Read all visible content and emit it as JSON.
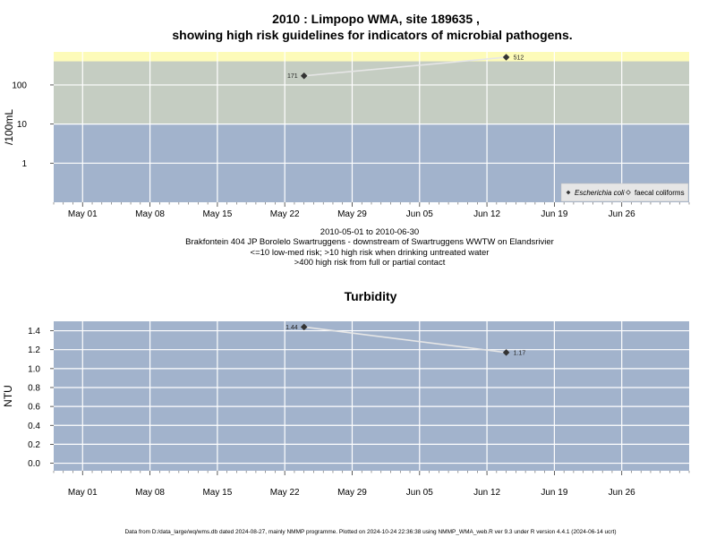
{
  "figure": {
    "title_line1": "2010 : Limpopo WMA, site 189635 ,",
    "title_line2": "showing high risk guidelines for indicators of microbial pathogens.",
    "caption_lines": [
      "2010-05-01 to 2010-06-30",
      "Brakfontein 404 JP Borolelo Swartruggens - downstream of Swartruggens WWTW on Elandsrivier",
      "<=10 low-med risk; >10 high risk when drinking untreated water",
      ">400 high risk from full or partial contact"
    ],
    "footer": "Data from D:/data_large/wq/wms.db dated 2024-08-27, mainly NMMP programme. Plotted on 2024-10-24 22:36:38 using NMMP_WMA_web.R ver 9.3 under R version 4.4.1 (2024-06-14 ucrt)"
  },
  "colors": {
    "band_low": "#a2b3cc",
    "band_mid": "#c5cdc2",
    "band_high": "#fdfbb9",
    "panel_bg": "#a2b3cc",
    "grid": "#ffffff",
    "line": "#e6e6e6",
    "point": "#333333",
    "legend_bg": "#e6e6e6"
  },
  "chart_data": [
    {
      "type": "scatter",
      "ylabel": "/100mL",
      "yscale": "log",
      "ylim": [
        0.1,
        700
      ],
      "yticks": [
        1,
        10,
        100
      ],
      "ytick_labels": [
        "1",
        "10",
        "100"
      ],
      "x_range": [
        "2010-04-28",
        "2010-07-03"
      ],
      "xticks": [
        "2010-05-01",
        "2010-05-08",
        "2010-05-15",
        "2010-05-22",
        "2010-05-29",
        "2010-06-05",
        "2010-06-12",
        "2010-06-19",
        "2010-06-26"
      ],
      "xtick_labels": [
        "May 01",
        "May 08",
        "May 15",
        "May 22",
        "May 29",
        "Jun 05",
        "Jun 12",
        "Jun 19",
        "Jun 26"
      ],
      "risk_bands": [
        {
          "from": 0.1,
          "to": 10,
          "color": "band_low"
        },
        {
          "from": 10,
          "to": 400,
          "color": "band_mid"
        },
        {
          "from": 400,
          "to": 700,
          "color": "band_high"
        }
      ],
      "series": [
        {
          "name": "Escherichia coli",
          "marker": "filled-diamond",
          "points": [
            {
              "x": "2010-05-24",
              "y": 171,
              "label": "171"
            },
            {
              "x": "2010-06-14",
              "y": 512,
              "label": "512"
            }
          ]
        },
        {
          "name": "faecal coliforms",
          "marker": "open-diamond",
          "points": []
        }
      ],
      "legend": "bottom-right",
      "grid": true
    },
    {
      "type": "scatter",
      "title": "Turbidity",
      "ylabel": "NTU",
      "ylim": [
        -0.08,
        1.5
      ],
      "yticks": [
        0,
        0.2,
        0.4,
        0.6,
        0.8,
        1.0,
        1.2,
        1.4
      ],
      "ytick_labels": [
        "0.0",
        "0.2",
        "0.4",
        "0.6",
        "0.8",
        "1.0",
        "1.2",
        "1.4"
      ],
      "x_range": [
        "2010-04-28",
        "2010-07-03"
      ],
      "xticks": [
        "2010-05-01",
        "2010-05-08",
        "2010-05-15",
        "2010-05-22",
        "2010-05-29",
        "2010-06-05",
        "2010-06-12",
        "2010-06-19",
        "2010-06-26"
      ],
      "xtick_labels": [
        "May 01",
        "May 08",
        "May 15",
        "May 22",
        "May 29",
        "Jun 05",
        "Jun 12",
        "Jun 19",
        "Jun 26"
      ],
      "series": [
        {
          "marker": "filled-diamond",
          "points": [
            {
              "x": "2010-05-24",
              "y": 1.44,
              "label": "1.44"
            },
            {
              "x": "2010-06-14",
              "y": 1.17,
              "label": "1.17"
            }
          ]
        }
      ],
      "grid": true
    }
  ]
}
